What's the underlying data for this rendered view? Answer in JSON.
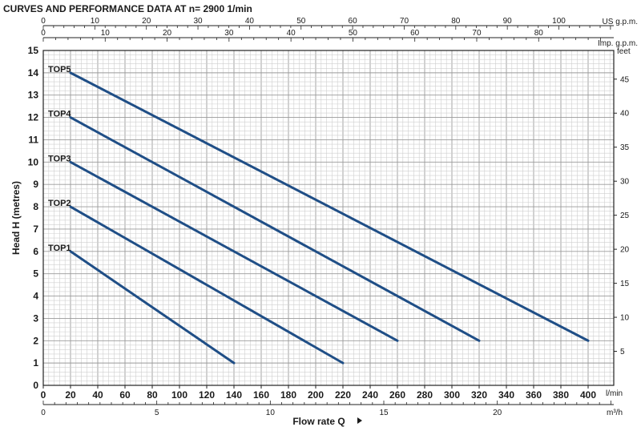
{
  "chart_data": {
    "type": "line",
    "title": "CURVES AND PERFORMANCE DATA AT n= 2900  1/min",
    "xlabel": "Flow rate Q",
    "ylabel": "Head H  (metres)",
    "x_unit": "l/min",
    "xlim": [
      0,
      400
    ],
    "ylim": [
      0,
      15
    ],
    "x_ticks": [
      0,
      20,
      40,
      60,
      80,
      100,
      120,
      140,
      160,
      180,
      200,
      220,
      240,
      260,
      280,
      300,
      320,
      340,
      360,
      380,
      400
    ],
    "y_ticks": [
      0,
      1,
      2,
      3,
      4,
      5,
      6,
      7,
      8,
      9,
      10,
      11,
      12,
      13,
      14,
      15
    ],
    "grid": true,
    "secondary_axes": {
      "us_gpm": {
        "label": "US g.p.m.",
        "ticks": [
          0,
          10,
          20,
          30,
          40,
          50,
          60,
          70,
          80,
          90,
          100
        ]
      },
      "imp_gpm": {
        "label": "Imp. g.p.m.",
        "ticks": [
          0,
          10,
          20,
          30,
          40,
          50,
          60,
          70,
          80
        ]
      },
      "feet": {
        "label": "feet",
        "ticks": [
          5,
          10,
          15,
          20,
          25,
          30,
          35,
          40,
          45
        ]
      },
      "m3h": {
        "label": "m³/h",
        "ticks": [
          0,
          5,
          10,
          15,
          20
        ]
      }
    },
    "series": [
      {
        "name": "TOP1",
        "x": [
          20,
          140
        ],
        "y": [
          6,
          1
        ]
      },
      {
        "name": "TOP2",
        "x": [
          20,
          220
        ],
        "y": [
          8,
          1
        ]
      },
      {
        "name": "TOP3",
        "x": [
          20,
          260
        ],
        "y": [
          10,
          2
        ]
      },
      {
        "name": "TOP4",
        "x": [
          20,
          320
        ],
        "y": [
          12,
          2
        ]
      },
      {
        "name": "TOP5",
        "x": [
          20,
          400
        ],
        "y": [
          14,
          2
        ]
      }
    ],
    "line_color": "#1f4e86"
  }
}
